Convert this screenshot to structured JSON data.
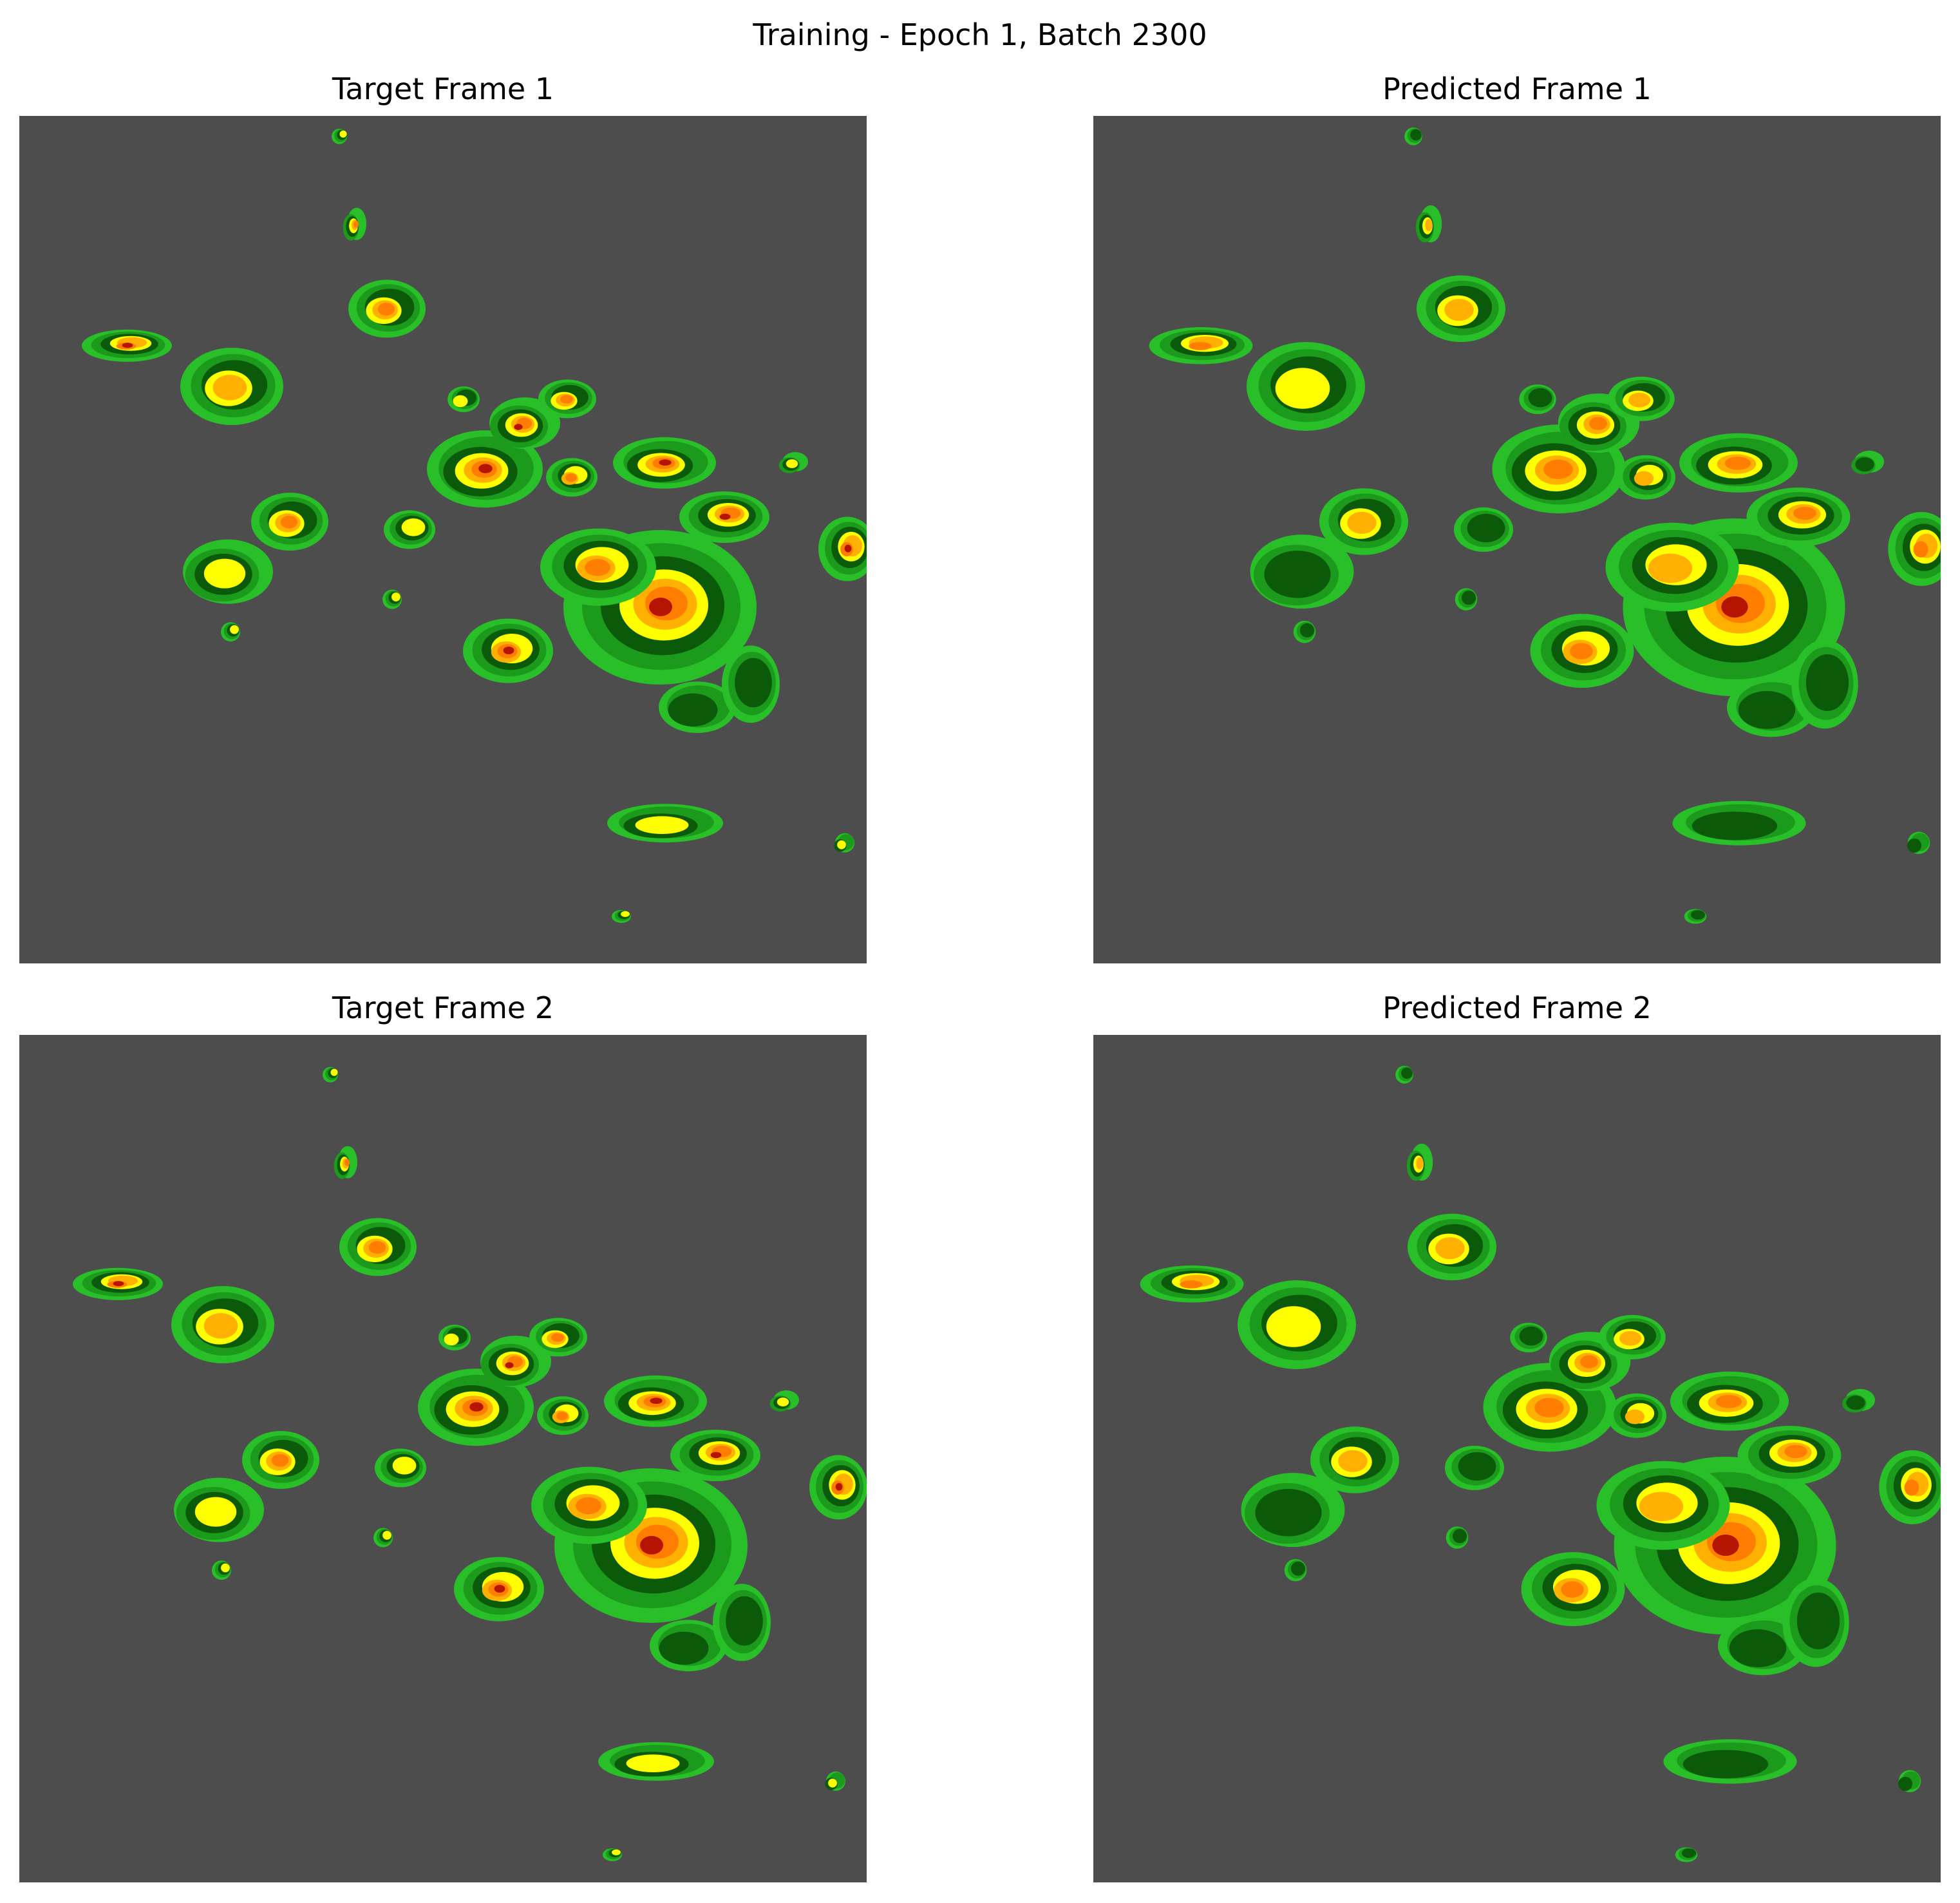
{
  "figure": {
    "title": "Training - Epoch 1, Batch 2300"
  },
  "colors": {
    "background": "#4d4d4d",
    "light_green": "#29bf29",
    "mid_green": "#1c9a1c",
    "dark_green": "#0a5a0a",
    "yellow": "#ffff00",
    "orange_light": "#ffb000",
    "orange": "#ff7d00",
    "red": "#b41400"
  },
  "panels": [
    {
      "id": "target-1",
      "title": "Target Frame 1"
    },
    {
      "id": "pred-1",
      "title": "Predicted Frame 1"
    },
    {
      "id": "target-2",
      "title": "Target Frame 2"
    },
    {
      "id": "pred-2",
      "title": "Predicted Frame 2"
    }
  ]
}
